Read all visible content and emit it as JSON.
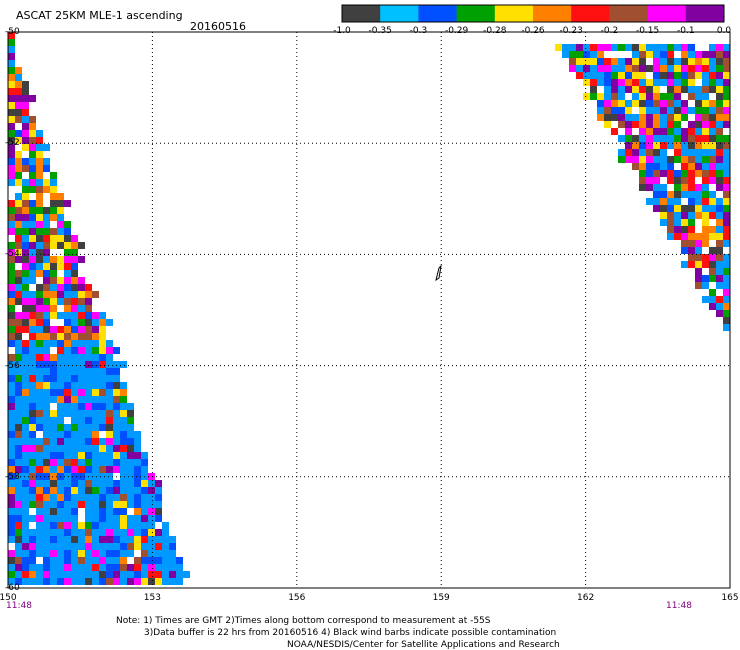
{
  "header": {
    "title": "ASCAT 25KM MLE-1 ascending",
    "date": "20160516"
  },
  "colorbar": {
    "colors": [
      "#404040",
      "#00c0ff",
      "#0050ff",
      "#00a000",
      "#ffe000",
      "#ff8000",
      "#ff1010",
      "#a05030",
      "#ff00ff",
      "#8000a0"
    ],
    "labels": [
      "-1.0",
      "-0.35",
      "-0.3",
      "-0.29",
      "-0.28",
      "-0.26",
      "-0.23",
      "-0.2",
      "-0.15",
      "-0.1",
      "0.0"
    ]
  },
  "map": {
    "lon_range": [
      150,
      165
    ],
    "lat_range": [
      -60,
      -50
    ],
    "x_ticks": [
      "150",
      "153",
      "156",
      "159",
      "162",
      "165"
    ],
    "y_ticks": [
      "-50",
      "-52",
      "-54",
      "-56",
      "-58",
      "-60"
    ],
    "start_time": "11:48",
    "end_time": "11:48",
    "grid": true,
    "palette": [
      "#0099ff",
      "#0050ff",
      "#ffe000",
      "#ff8000",
      "#ff1010",
      "#ff00ff",
      "#8000a0",
      "#a05030",
      "#00a000",
      "#404040",
      "#ffffff"
    ]
  },
  "notes": {
    "line1": "Note: 1) Times are GMT 2)Times along bottom correspond to measurement at -55S",
    "line2": "3)Data buffer is 22 hrs from 20160516 4) Black wind barbs indicate possible contamination",
    "line3": "NOAA/NESDIS/Center for Satellite Applications and Research"
  }
}
